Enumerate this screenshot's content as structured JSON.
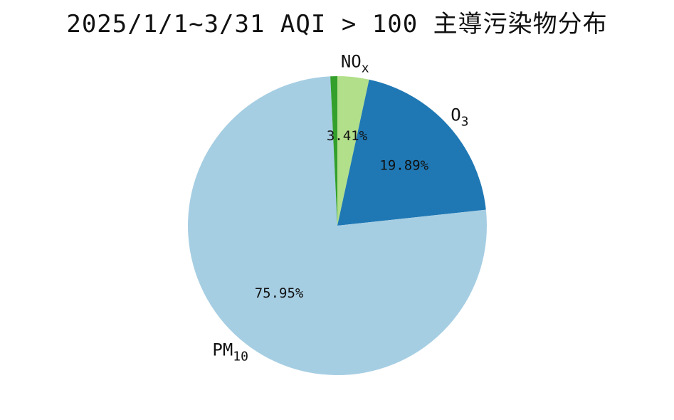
{
  "chart_data": {
    "type": "pie",
    "title": "2025/1/1~3/31 AQI > 100 主導污染物分布",
    "slices": [
      {
        "label": "NO",
        "label_sub": "x",
        "percent": 3.41,
        "display": "3.41%",
        "color": "#b2df8a"
      },
      {
        "label": "O",
        "label_sub": "3",
        "percent": 19.89,
        "display": "19.89%",
        "color": "#1f78b4"
      },
      {
        "label": "PM",
        "label_sub": "10",
        "percent": 75.95,
        "display": "75.95%",
        "color": "#a6cee3"
      },
      {
        "label": "",
        "label_sub": "",
        "percent": 0.75,
        "display": "",
        "color": "#33a02c"
      }
    ],
    "start_angle_deg": 90,
    "direction": "clockwise"
  }
}
